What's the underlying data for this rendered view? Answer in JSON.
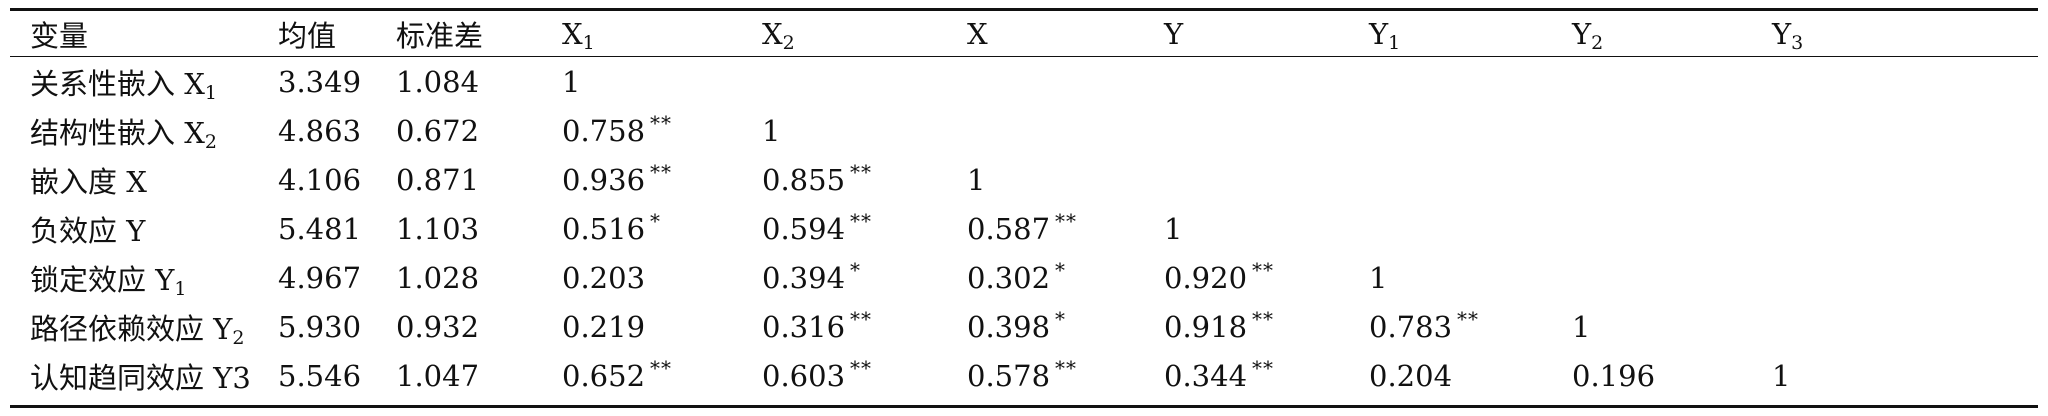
{
  "table": {
    "headers": [
      {
        "main": "变量",
        "sub": ""
      },
      {
        "main": "均值",
        "sub": ""
      },
      {
        "main": "标准差",
        "sub": ""
      },
      {
        "main": "X",
        "sub": "1"
      },
      {
        "main": "X",
        "sub": "2"
      },
      {
        "main": "X",
        "sub": ""
      },
      {
        "main": "Y",
        "sub": ""
      },
      {
        "main": "Y",
        "sub": "1"
      },
      {
        "main": "Y",
        "sub": "2"
      },
      {
        "main": "Y",
        "sub": "3"
      }
    ],
    "rows": [
      {
        "label": "关系性嵌入 X",
        "label_sub": "1",
        "mean": "3.349",
        "sd": "1.084",
        "corr": [
          {
            "v": "1",
            "s": ""
          }
        ]
      },
      {
        "label": "结构性嵌入 X",
        "label_sub": "2",
        "mean": "4.863",
        "sd": "0.672",
        "corr": [
          {
            "v": "0.758",
            "s": "**"
          },
          {
            "v": "1",
            "s": ""
          }
        ]
      },
      {
        "label": "嵌入度 X",
        "label_sub": "",
        "mean": "4.106",
        "sd": "0.871",
        "corr": [
          {
            "v": "0.936",
            "s": "**"
          },
          {
            "v": "0.855",
            "s": "**"
          },
          {
            "v": "1",
            "s": ""
          }
        ]
      },
      {
        "label": "负效应 Y",
        "label_sub": "",
        "mean": "5.481",
        "sd": "1.103",
        "corr": [
          {
            "v": "0.516",
            "s": "*"
          },
          {
            "v": "0.594",
            "s": "**"
          },
          {
            "v": "0.587",
            "s": "**"
          },
          {
            "v": "1",
            "s": ""
          }
        ]
      },
      {
        "label": "锁定效应 Y",
        "label_sub": "1",
        "mean": "4.967",
        "sd": "1.028",
        "corr": [
          {
            "v": "0.203",
            "s": ""
          },
          {
            "v": "0.394",
            "s": "*"
          },
          {
            "v": "0.302",
            "s": "*"
          },
          {
            "v": "0.920",
            "s": "**"
          },
          {
            "v": "1",
            "s": ""
          }
        ]
      },
      {
        "label": "路径依赖效应 Y",
        "label_sub": "2",
        "mean": "5.930",
        "sd": "0.932",
        "corr": [
          {
            "v": "0.219",
            "s": ""
          },
          {
            "v": "0.316",
            "s": "**"
          },
          {
            "v": "0.398",
            "s": "*"
          },
          {
            "v": "0.918",
            "s": "**"
          },
          {
            "v": "0.783",
            "s": "**"
          },
          {
            "v": "1",
            "s": ""
          }
        ]
      },
      {
        "label": "认知趋同效应 Y3",
        "label_sub": "",
        "mean": "5.546",
        "sd": "1.047",
        "corr": [
          {
            "v": "0.652",
            "s": "**"
          },
          {
            "v": "0.603",
            "s": "**"
          },
          {
            "v": "0.578",
            "s": "**"
          },
          {
            "v": "0.344",
            "s": "**"
          },
          {
            "v": "0.204",
            "s": ""
          },
          {
            "v": "0.196",
            "s": ""
          },
          {
            "v": "1",
            "s": ""
          }
        ]
      }
    ]
  }
}
